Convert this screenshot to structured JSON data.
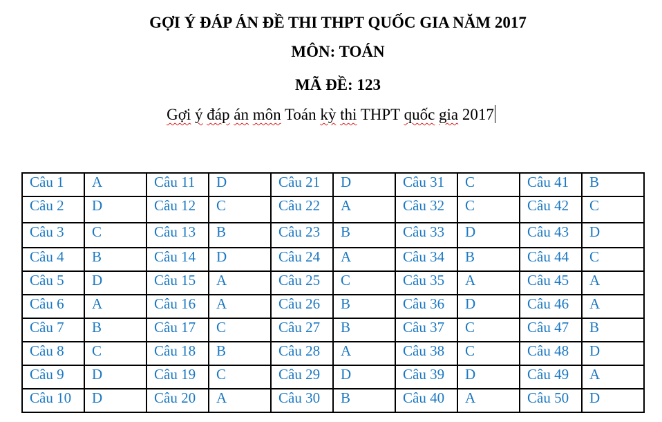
{
  "document": {
    "title_line1": "GỢI Ý ĐÁP ÁN ĐỀ THI THPT QUỐC GIA NĂM 2017",
    "title_line2": "MÔN: TOÁN",
    "title_line3": "MÃ ĐỀ: 123",
    "subtitle": {
      "w1": "Gợi",
      "w2": "ý",
      "w3": "đáp",
      "w4": "án",
      "w5": "môn",
      "w6": "Toán",
      "w7": "kỳ",
      "w8": "thi",
      "w9": "THPT",
      "w10": "quốc",
      "w11": "gia",
      "w12": "2017"
    },
    "spellcheck_color": "#e02020",
    "answer_color": "#1a78c2"
  },
  "answers": [
    {
      "q": "Câu 1",
      "a": "A"
    },
    {
      "q": "Câu 2",
      "a": "D"
    },
    {
      "q": "Câu 3",
      "a": "C"
    },
    {
      "q": "Câu 4",
      "a": "B"
    },
    {
      "q": "Câu 5",
      "a": "D"
    },
    {
      "q": "Câu 6",
      "a": "A"
    },
    {
      "q": "Câu 7",
      "a": "B"
    },
    {
      "q": "Câu 8",
      "a": "C"
    },
    {
      "q": "Câu 9",
      "a": "D"
    },
    {
      "q": "Câu 10",
      "a": "D"
    },
    {
      "q": "Câu 11",
      "a": "D"
    },
    {
      "q": "Câu 12",
      "a": "C"
    },
    {
      "q": "Câu 13",
      "a": "B"
    },
    {
      "q": "Câu 14",
      "a": "D"
    },
    {
      "q": "Câu 15",
      "a": "A"
    },
    {
      "q": "Câu 16",
      "a": "A"
    },
    {
      "q": "Câu 17",
      "a": "C"
    },
    {
      "q": "Câu 18",
      "a": "B"
    },
    {
      "q": "Câu 19",
      "a": "C"
    },
    {
      "q": "Câu 20",
      "a": "A"
    },
    {
      "q": "Câu 21",
      "a": "D"
    },
    {
      "q": "Câu 22",
      "a": "A"
    },
    {
      "q": "Câu 23",
      "a": "B"
    },
    {
      "q": "Câu 24",
      "a": "A"
    },
    {
      "q": "Câu 25",
      "a": "C"
    },
    {
      "q": "Câu 26",
      "a": "B"
    },
    {
      "q": "Câu 27",
      "a": "B"
    },
    {
      "q": "Câu 28",
      "a": "A"
    },
    {
      "q": "Câu 29",
      "a": "D"
    },
    {
      "q": "Câu 30",
      "a": "B"
    },
    {
      "q": "Câu 31",
      "a": "C"
    },
    {
      "q": "Câu 32",
      "a": "C"
    },
    {
      "q": "Câu 33",
      "a": "D"
    },
    {
      "q": "Câu 34",
      "a": "B"
    },
    {
      "q": "Câu 35",
      "a": "A"
    },
    {
      "q": "Câu 36",
      "a": "D"
    },
    {
      "q": "Câu 37",
      "a": "C"
    },
    {
      "q": "Câu 38",
      "a": "C"
    },
    {
      "q": "Câu 39",
      "a": "D"
    },
    {
      "q": "Câu 40",
      "a": "A"
    },
    {
      "q": "Câu 41",
      "a": "B"
    },
    {
      "q": "Câu 42",
      "a": "C"
    },
    {
      "q": "Câu 43",
      "a": "D"
    },
    {
      "q": "Câu 44",
      "a": "C"
    },
    {
      "q": "Câu 45",
      "a": "A"
    },
    {
      "q": "Câu 46",
      "a": "A"
    },
    {
      "q": "Câu 47",
      "a": "B"
    },
    {
      "q": "Câu 48",
      "a": "D"
    },
    {
      "q": "Câu 49",
      "a": "A"
    },
    {
      "q": "Câu 50",
      "a": "D"
    }
  ]
}
